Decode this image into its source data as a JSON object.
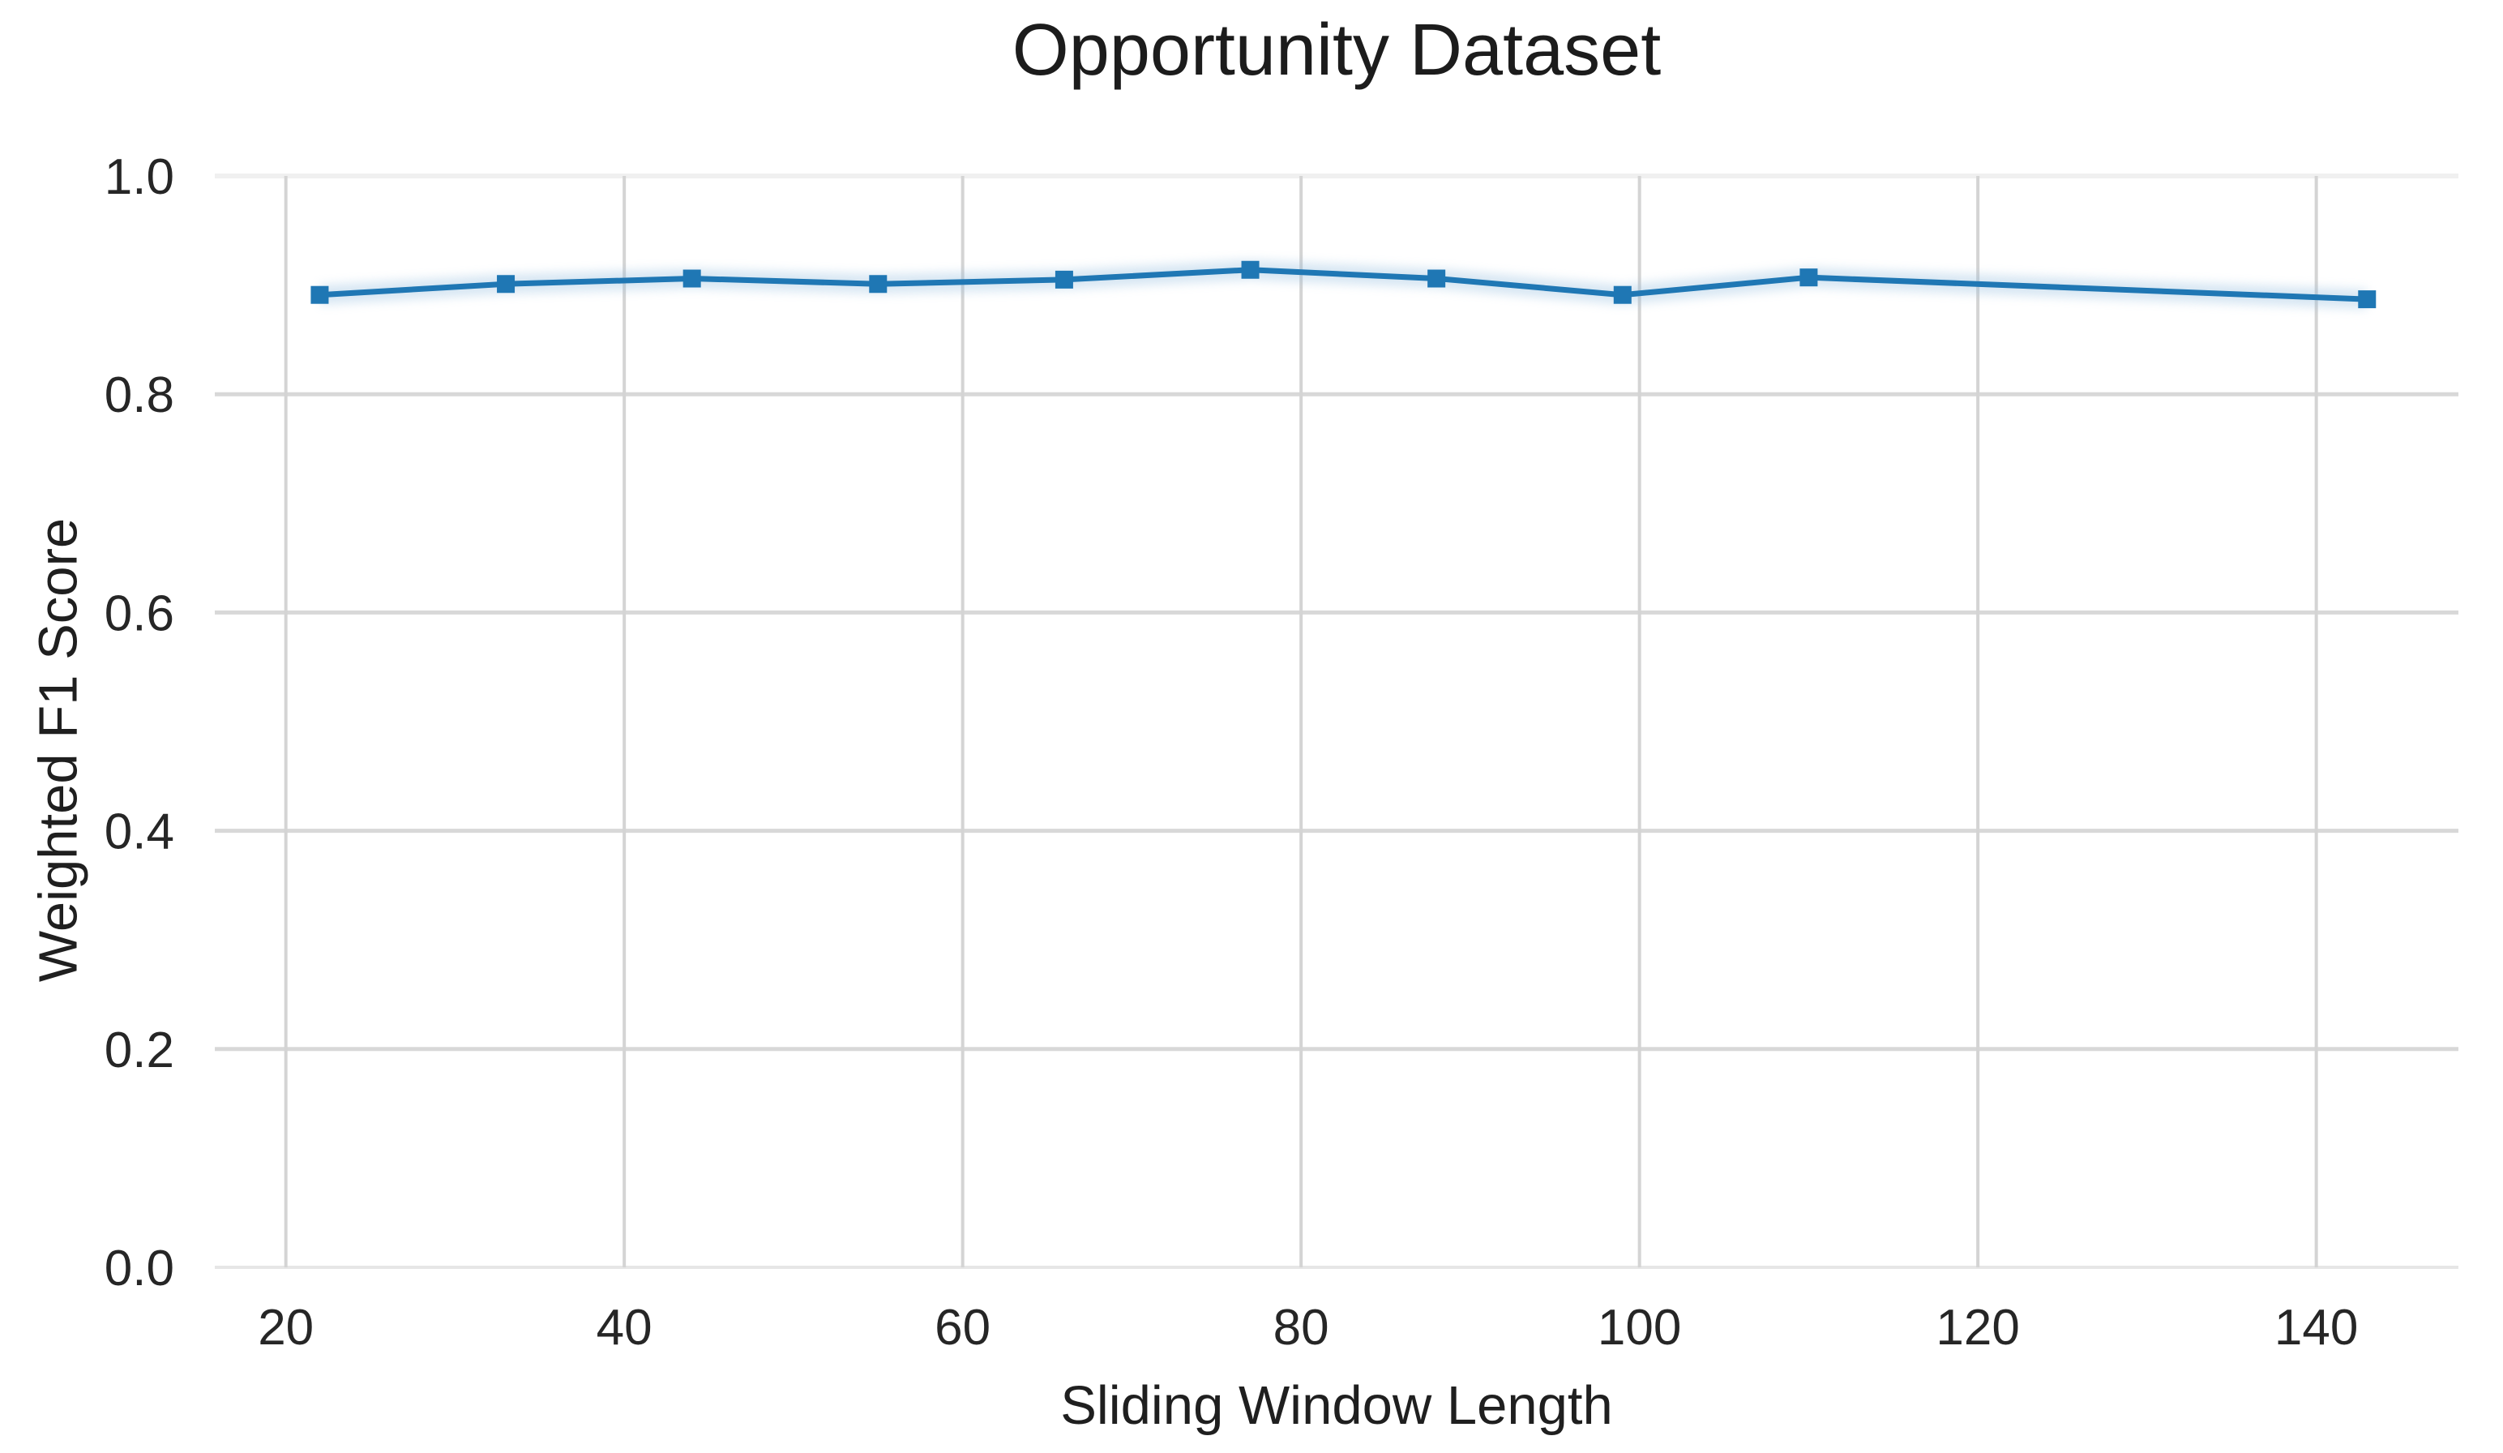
{
  "page": {
    "background_color": "#ffffff"
  },
  "chart_data": {
    "type": "line",
    "title": "Opportunity Dataset",
    "xlabel": "Sliding Window Length",
    "ylabel": "Weighted F1 Score",
    "x": [
      22,
      33,
      44,
      55,
      66,
      77,
      88,
      99,
      110,
      143
    ],
    "y": [
      0.891,
      0.901,
      0.906,
      0.901,
      0.905,
      0.914,
      0.906,
      0.891,
      0.907,
      0.887
    ],
    "xlim": [
      15.8,
      148.4
    ],
    "ylim": [
      0,
      1
    ],
    "x_ticks": [
      20,
      40,
      60,
      80,
      100,
      120,
      140
    ],
    "x_tick_labels": [
      "20",
      "40",
      "60",
      "80",
      "100",
      "120",
      "140"
    ],
    "y_ticks": [
      0.0,
      0.2,
      0.4,
      0.6,
      0.8,
      1.0
    ],
    "y_tick_labels": [
      "0.0",
      "0.2",
      "0.4",
      "0.6",
      "0.8",
      "1.0"
    ],
    "grid": true,
    "legend_visible": false,
    "marker_shape": "square",
    "colors": {
      "line": "#1f77b4",
      "line_halo": "#8db9dd",
      "grid_horizontal": "#d8d8d8",
      "grid_vertical": "#d4d4d4",
      "grid_top_line": "#f0f0f0",
      "grid_bottom_line": "#e6e6e6",
      "text": "#262626",
      "title_text": "#1c1c1c"
    }
  }
}
